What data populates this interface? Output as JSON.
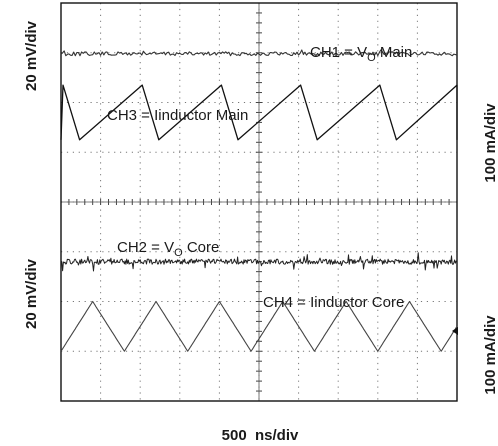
{
  "chart_data": {
    "type": "line",
    "title": "",
    "xlabel": "500  ns/div",
    "time_per_div_ns": 500,
    "divisions": {
      "x": 10,
      "y": 8
    },
    "ylabels": {
      "left_top": "20 mV/div",
      "left_bottom": "20 mV/div",
      "right_top": "100 mA/div",
      "right_bottom": "100 mA/div"
    },
    "grid": true,
    "series": [
      {
        "name": "CH1 = VO Main",
        "label_main": "CH1 = V",
        "label_sub": "O",
        "label_tail": " Main",
        "scale": "20 mV/div",
        "waveform": "dc-ripple",
        "baseline_div": 1.02,
        "ripple_pp_div": 0.08,
        "color": "#333333"
      },
      {
        "name": "CH3 = Iinductor Main",
        "label_main": "CH3 = Iinductor Main",
        "scale": "100 mA/div",
        "waveform": "sawtooth",
        "period_div": 2.0,
        "first_peak_div": 0.05,
        "high_div": 1.65,
        "low_div": 2.75,
        "color": "#111111"
      },
      {
        "name": "CH2 = VO Core",
        "label_main": "CH2 = V",
        "label_sub": "O",
        "label_tail": " Core",
        "scale": "20 mV/div",
        "waveform": "dc-noise",
        "baseline_div": 5.2,
        "noise_pp_div": 0.15,
        "color": "#222222"
      },
      {
        "name": "CH4 = Iinductor Core",
        "label_main": "CH4 = Iinductor Core",
        "scale": "100 mA/div",
        "waveform": "triangle",
        "period_div": 1.6,
        "first_valley_div": 0.0,
        "high_div": 6.0,
        "low_div": 7.0,
        "color": "#444444"
      }
    ]
  }
}
